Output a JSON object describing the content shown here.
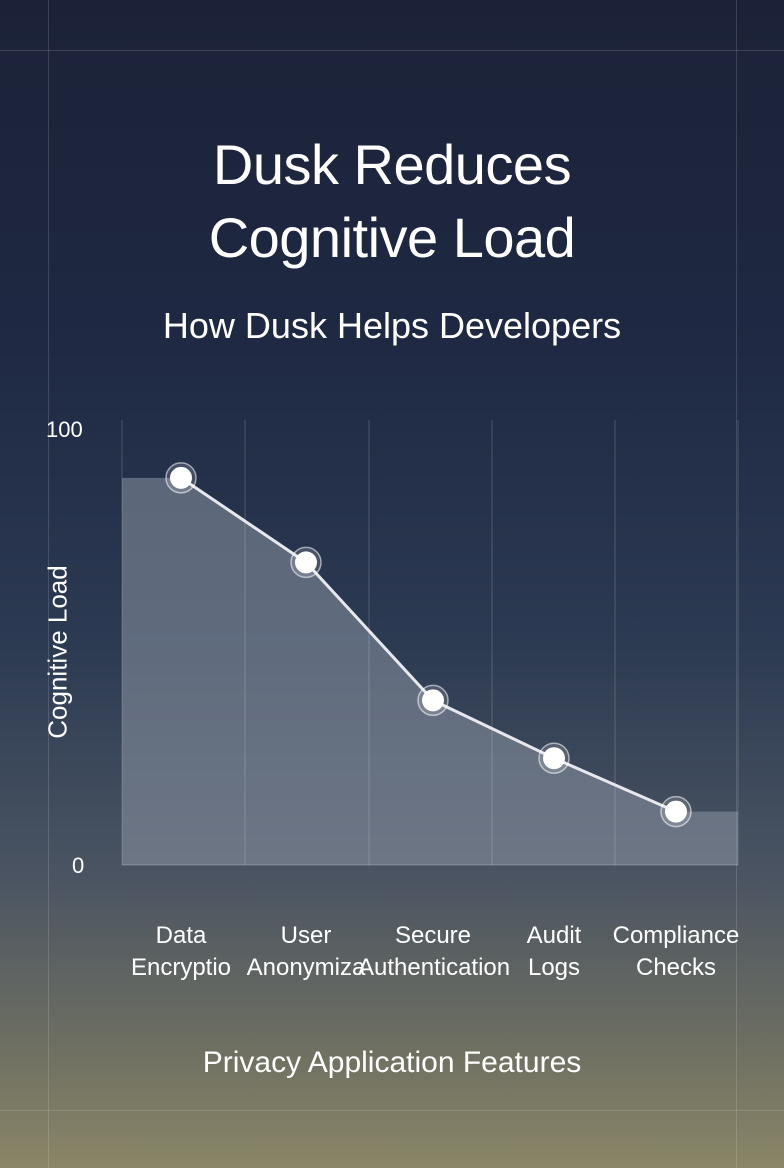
{
  "page": {
    "title_lines": [
      "Dusk Reduces",
      "Cognitive Load"
    ],
    "subtitle": "How Dusk Helps Developers"
  },
  "colors": {
    "background_top": "#1b2238",
    "background_bottom": "#8a8667",
    "line": "#e6e8ee",
    "marker_fill": "#ffffff",
    "area_fill": "#8a93a3"
  },
  "chart_data": {
    "type": "line",
    "xlabel": "Privacy Application Features",
    "ylabel": "Cognitive Load",
    "ylim": [
      0,
      100
    ],
    "y_ticks": [
      "0",
      "100"
    ],
    "categories": [
      [
        "Data",
        "Encryptio"
      ],
      [
        "User",
        "Anonymiza"
      ],
      [
        "Secure",
        "Authentication"
      ],
      [
        "Audit",
        "Logs"
      ],
      [
        "Compliance",
        "Checks"
      ]
    ],
    "values": [
      87,
      68,
      37,
      24,
      12
    ],
    "grid": "vertical",
    "area_under_line": true,
    "legend": "none"
  }
}
